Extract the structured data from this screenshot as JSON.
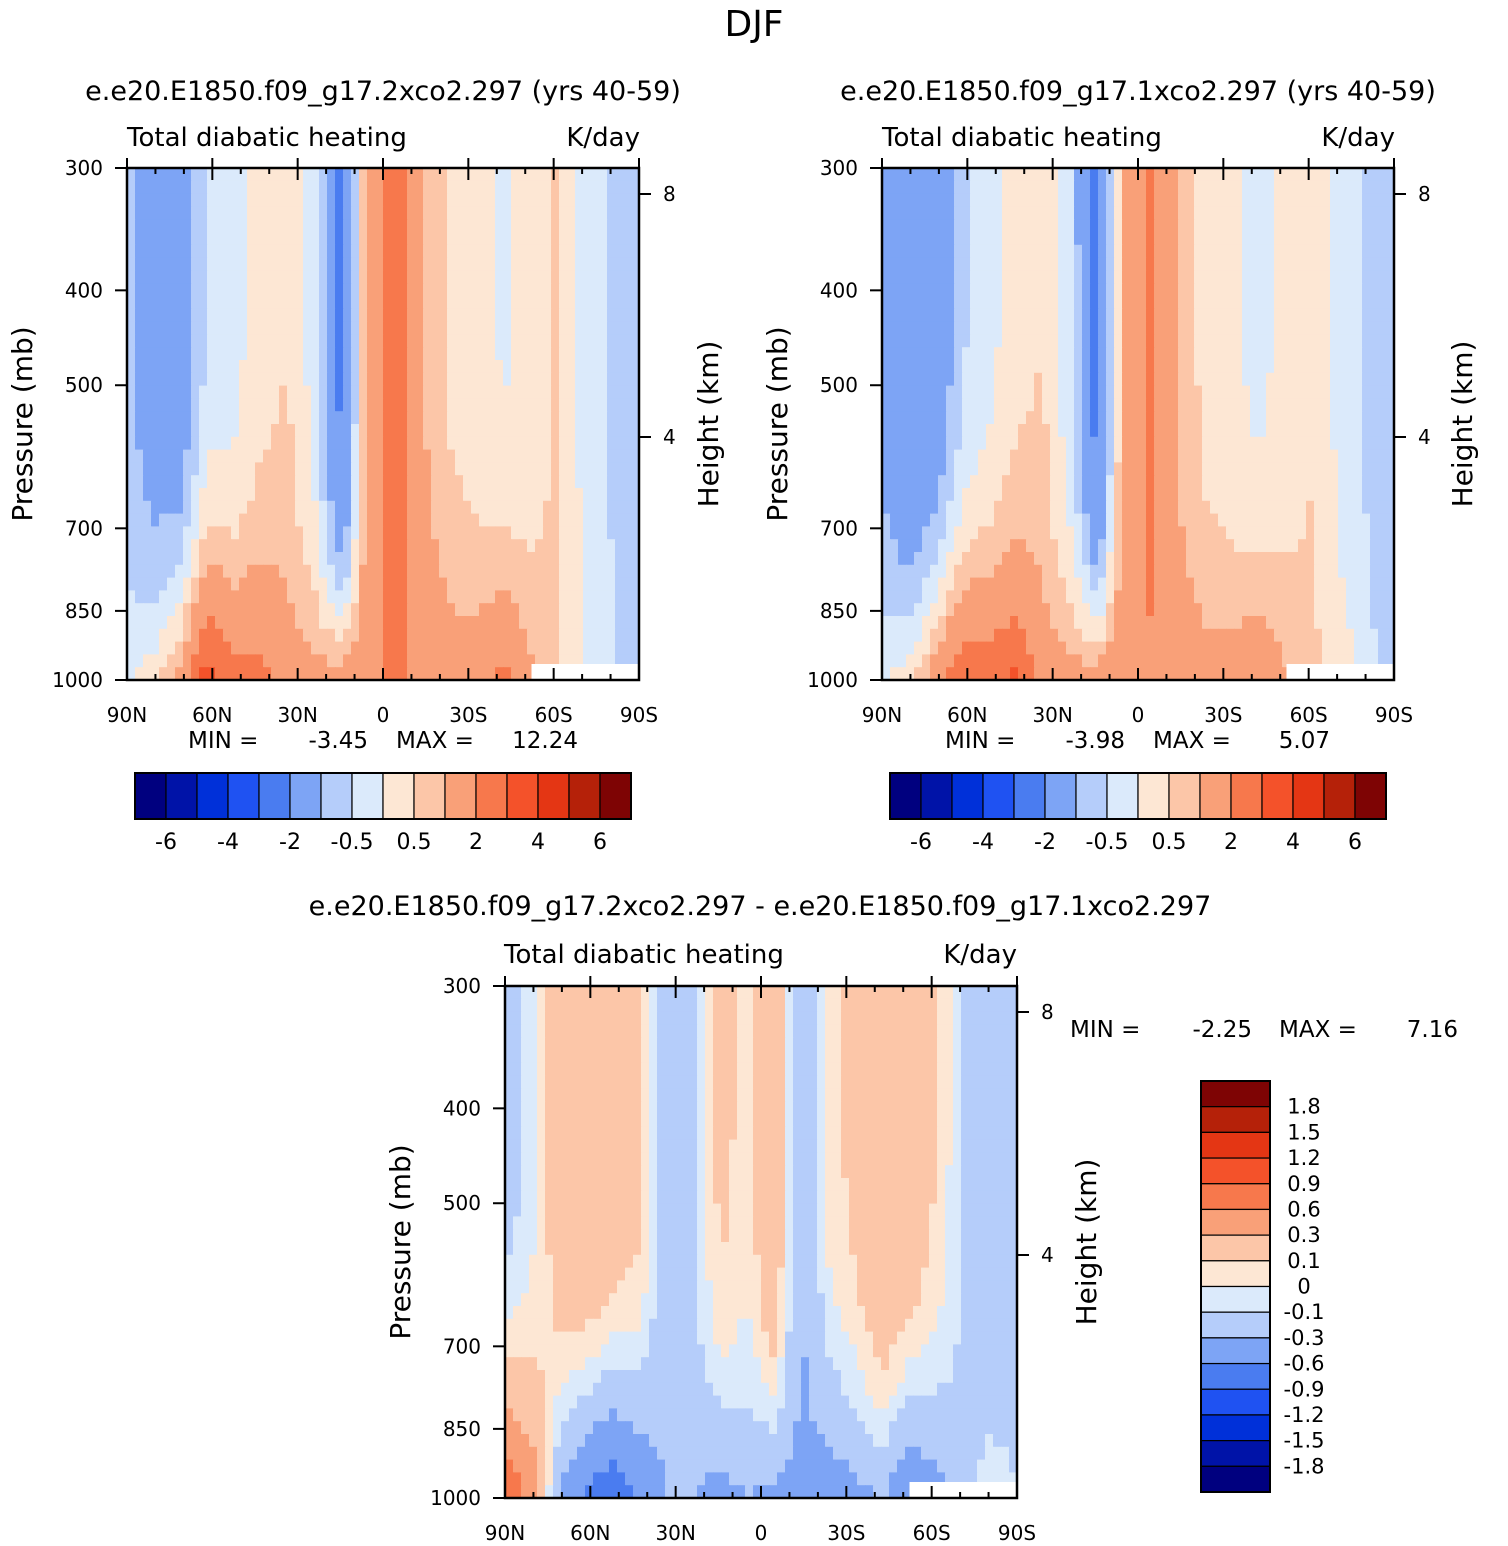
{
  "page_title": "DJF",
  "colors": {
    "blue_ramp": [
      "#00007f",
      "#0013a8",
      "#0030d9",
      "#1f52f2",
      "#4a7cf0",
      "#7da4f5",
      "#b5cdfa",
      "#dbeafb"
    ],
    "red_ramp": [
      "#fde7d4",
      "#fcc6a8",
      "#f9a078",
      "#f7784c",
      "#f4522a",
      "#e43614",
      "#b52109",
      "#7e0404"
    ]
  },
  "chart_data": [
    {
      "id": "panel_2x",
      "type": "heatmap",
      "title": "e.e20.E1850.f09_g17.2xco2.297 (yrs 40-59)",
      "subtitle_left": "Total diabatic heating",
      "subtitle_right": "K/day",
      "ylabel": "Pressure (mb)",
      "ylabel_right": "Height (km)",
      "x_ticks": [
        "90N",
        "60N",
        "30N",
        "0",
        "30S",
        "60S",
        "90S"
      ],
      "y_ticks": [
        "300",
        "400",
        "500",
        "700",
        "850",
        "1000"
      ],
      "y_right_ticks": [
        "8",
        "4"
      ],
      "xlim": [
        90,
        -90
      ],
      "ylim": [
        1000,
        300
      ],
      "y_scale": "log",
      "min_label": "MIN =",
      "min": "-3.45",
      "max_label": "MAX =",
      "max": "12.24",
      "cbar_labels": [
        "-6",
        "-4",
        "-2",
        "-0.5",
        "0.5",
        "2",
        "4",
        "6"
      ],
      "profile": [
        -0.9,
        -1.4,
        -1.6,
        -0.4,
        -0.2,
        0.3,
        0.5,
        -0.3,
        -2.5,
        1.5,
        2.6,
        1.0,
        0.4,
        0.2,
        -0.1,
        0.2,
        0.6,
        -0.2,
        -0.6,
        -0.8
      ],
      "surface": [
        0.0,
        0.3,
        1.5,
        3.6,
        2.5,
        2.4,
        1.6,
        1.3,
        1.5,
        1.9,
        2.2,
        1.8,
        1.5,
        1.6,
        2.3,
        1.2,
        0.5,
        0.0,
        -0.3,
        -1.0
      ]
    },
    {
      "id": "panel_1x",
      "type": "heatmap",
      "title": "e.e20.E1850.f09_g17.1xco2.297 (yrs 40-59)",
      "subtitle_left": "Total diabatic heating",
      "subtitle_right": "K/day",
      "ylabel": "Pressure (mb)",
      "ylabel_right": "Height (km)",
      "x_ticks": [
        "90N",
        "60N",
        "30N",
        "0",
        "30S",
        "60S",
        "90S"
      ],
      "y_ticks": [
        "300",
        "400",
        "500",
        "700",
        "850",
        "1000"
      ],
      "y_right_ticks": [
        "8",
        "4"
      ],
      "xlim": [
        90,
        -90
      ],
      "ylim": [
        1000,
        300
      ],
      "y_scale": "log",
      "min_label": "MIN =",
      "min": "-3.98",
      "max_label": "MAX =",
      "max": "5.07",
      "cbar_labels": [
        "-6",
        "-4",
        "-2",
        "-0.5",
        "0.5",
        "2",
        "4",
        "6"
      ],
      "profile": [
        -1.2,
        -1.8,
        -1.7,
        -0.6,
        -0.2,
        0.3,
        0.5,
        -0.4,
        -2.6,
        1.3,
        2.2,
        0.9,
        0.3,
        0.1,
        -0.2,
        0.2,
        0.5,
        -0.2,
        -0.6,
        -0.9
      ],
      "surface": [
        0.0,
        0.3,
        1.6,
        3.0,
        2.8,
        3.2,
        1.6,
        1.3,
        1.5,
        1.8,
        1.9,
        1.6,
        1.4,
        1.5,
        1.9,
        1.1,
        0.6,
        0.4,
        -0.2,
        -1.0
      ]
    },
    {
      "id": "panel_diff",
      "type": "heatmap",
      "title": "e.e20.E1850.f09_g17.2xco2.297 - e.e20.E1850.f09_g17.1xco2.297",
      "subtitle_left": "Total diabatic heating",
      "subtitle_right": "K/day",
      "ylabel": "Pressure (mb)",
      "ylabel_right": "Height (km)",
      "x_ticks": [
        "90N",
        "60N",
        "30N",
        "0",
        "30S",
        "60S",
        "90S"
      ],
      "y_ticks": [
        "300",
        "400",
        "500",
        "700",
        "850",
        "1000"
      ],
      "y_right_ticks": [
        "8",
        "4"
      ],
      "xlim": [
        90,
        -90
      ],
      "ylim": [
        1000,
        300
      ],
      "y_scale": "log",
      "min_label": "MIN =",
      "min": "-2.25",
      "max_label": "MAX =",
      "max": "7.16",
      "cbar_labels": [
        "1.8",
        "1.5",
        "1.2",
        "0.9",
        "0.6",
        "0.3",
        "0.1",
        "0",
        "-0.1",
        "-0.3",
        "-0.6",
        "-0.9",
        "-1.2",
        "-1.5",
        "-1.8"
      ],
      "profile": [
        -0.2,
        -0.05,
        0.2,
        0.3,
        0.25,
        0.15,
        -0.2,
        -0.1,
        0.15,
        0.05,
        0.3,
        -0.3,
        0.05,
        0.15,
        0.3,
        0.25,
        0.1,
        -0.1,
        -0.25,
        -0.15
      ],
      "surface": [
        0.9,
        0.5,
        -0.3,
        -0.7,
        -0.9,
        -0.6,
        -0.3,
        -0.3,
        -0.4,
        -0.3,
        -0.4,
        -0.4,
        -0.5,
        -0.4,
        -0.3,
        -0.6,
        -0.4,
        -0.2,
        0.0,
        -0.1
      ]
    }
  ]
}
